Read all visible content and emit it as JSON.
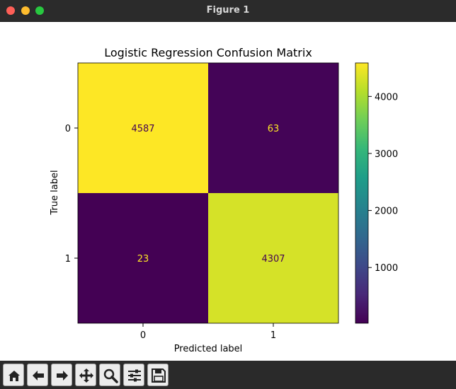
{
  "window": {
    "title": "Figure 1"
  },
  "toolbar": {
    "buttons": [
      {
        "name": "home-icon"
      },
      {
        "name": "back-arrow-icon"
      },
      {
        "name": "forward-arrow-icon"
      },
      {
        "name": "pan-move-icon"
      },
      {
        "name": "zoom-magnifier-icon"
      },
      {
        "name": "configure-subplots-icon"
      },
      {
        "name": "save-floppy-icon"
      }
    ]
  },
  "chart_data": {
    "type": "heatmap",
    "title": "Logistic Regression Confusion Matrix",
    "xlabel": "Predicted label",
    "ylabel": "True label",
    "x_categories": [
      "0",
      "1"
    ],
    "y_categories": [
      "0",
      "1"
    ],
    "values": [
      [
        4587,
        63
      ],
      [
        23,
        4307
      ]
    ],
    "colormap": "viridis",
    "colorbar": {
      "ticks": [
        1000,
        2000,
        3000,
        4000
      ],
      "tick_labels": [
        "1000",
        "2000",
        "3000",
        "4000"
      ],
      "range": [
        23,
        4587
      ]
    },
    "text_colors": {
      "on_bright": "#440154",
      "on_dark": "#fde725"
    }
  }
}
